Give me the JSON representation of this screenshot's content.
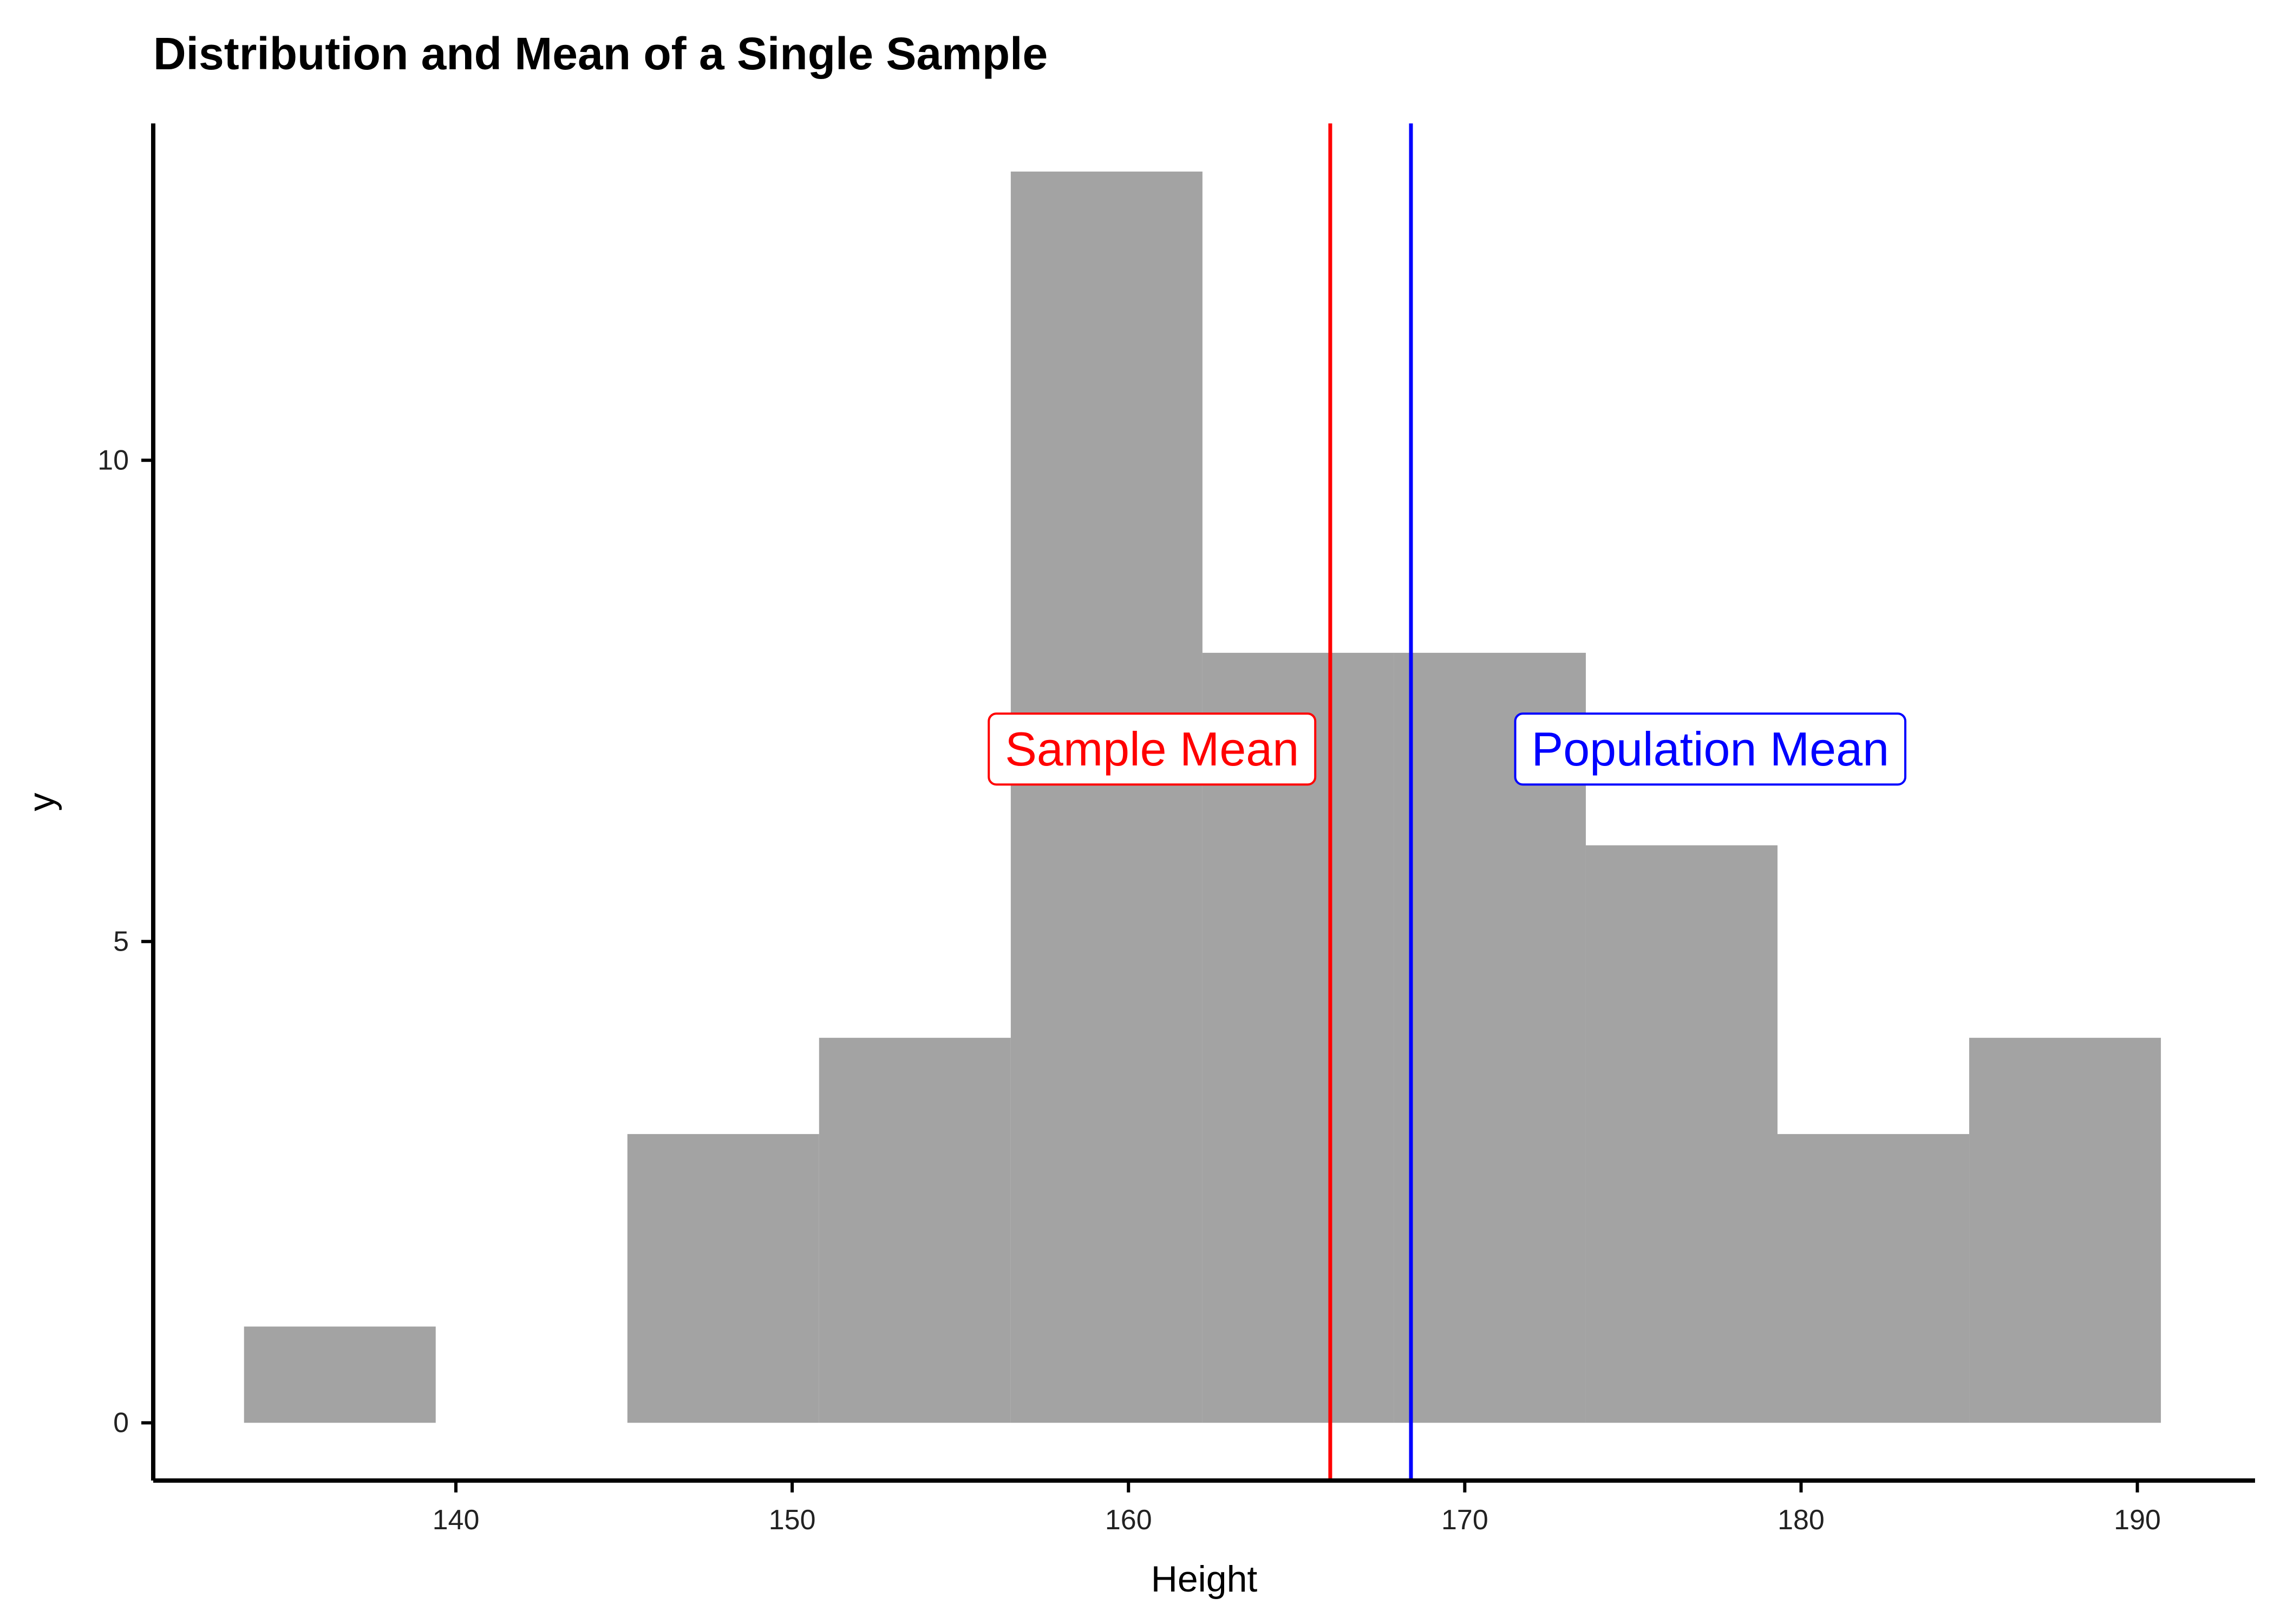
{
  "chart_data": {
    "type": "histogram",
    "title": "Distribution and Mean of a Single Sample",
    "xlabel": "Height",
    "ylabel": "y",
    "xlim": [
      131,
      193.5
    ],
    "ylim": [
      -0.6,
      13.5
    ],
    "xticks": [
      140,
      150,
      160,
      170,
      180,
      190
    ],
    "yticks": [
      0,
      5,
      10
    ],
    "bins": [
      {
        "x0": 133.7,
        "x1": 139.4,
        "count": 1
      },
      {
        "x0": 139.4,
        "x1": 145.1,
        "count": 0
      },
      {
        "x0": 145.1,
        "x1": 150.8,
        "count": 3
      },
      {
        "x0": 150.8,
        "x1": 156.5,
        "count": 4
      },
      {
        "x0": 156.5,
        "x1": 162.2,
        "count": 13
      },
      {
        "x0": 162.2,
        "x1": 167.9,
        "count": 8
      },
      {
        "x0": 167.9,
        "x1": 173.6,
        "count": 8
      },
      {
        "x0": 173.6,
        "x1": 179.3,
        "count": 6
      },
      {
        "x0": 179.3,
        "x1": 185.0,
        "count": 3
      },
      {
        "x0": 185.0,
        "x1": 190.7,
        "count": 4
      }
    ],
    "bar_color": "#a3a3a3",
    "vlines": [
      {
        "x": 166.0,
        "color": "#ff0000",
        "label": "Sample Mean",
        "label_x": 160.7,
        "label_y": 7
      },
      {
        "x": 168.4,
        "color": "#0000ff",
        "label": "Population Mean",
        "label_x": 177.3,
        "label_y": 7
      }
    ],
    "grid": false,
    "legend": "none"
  }
}
